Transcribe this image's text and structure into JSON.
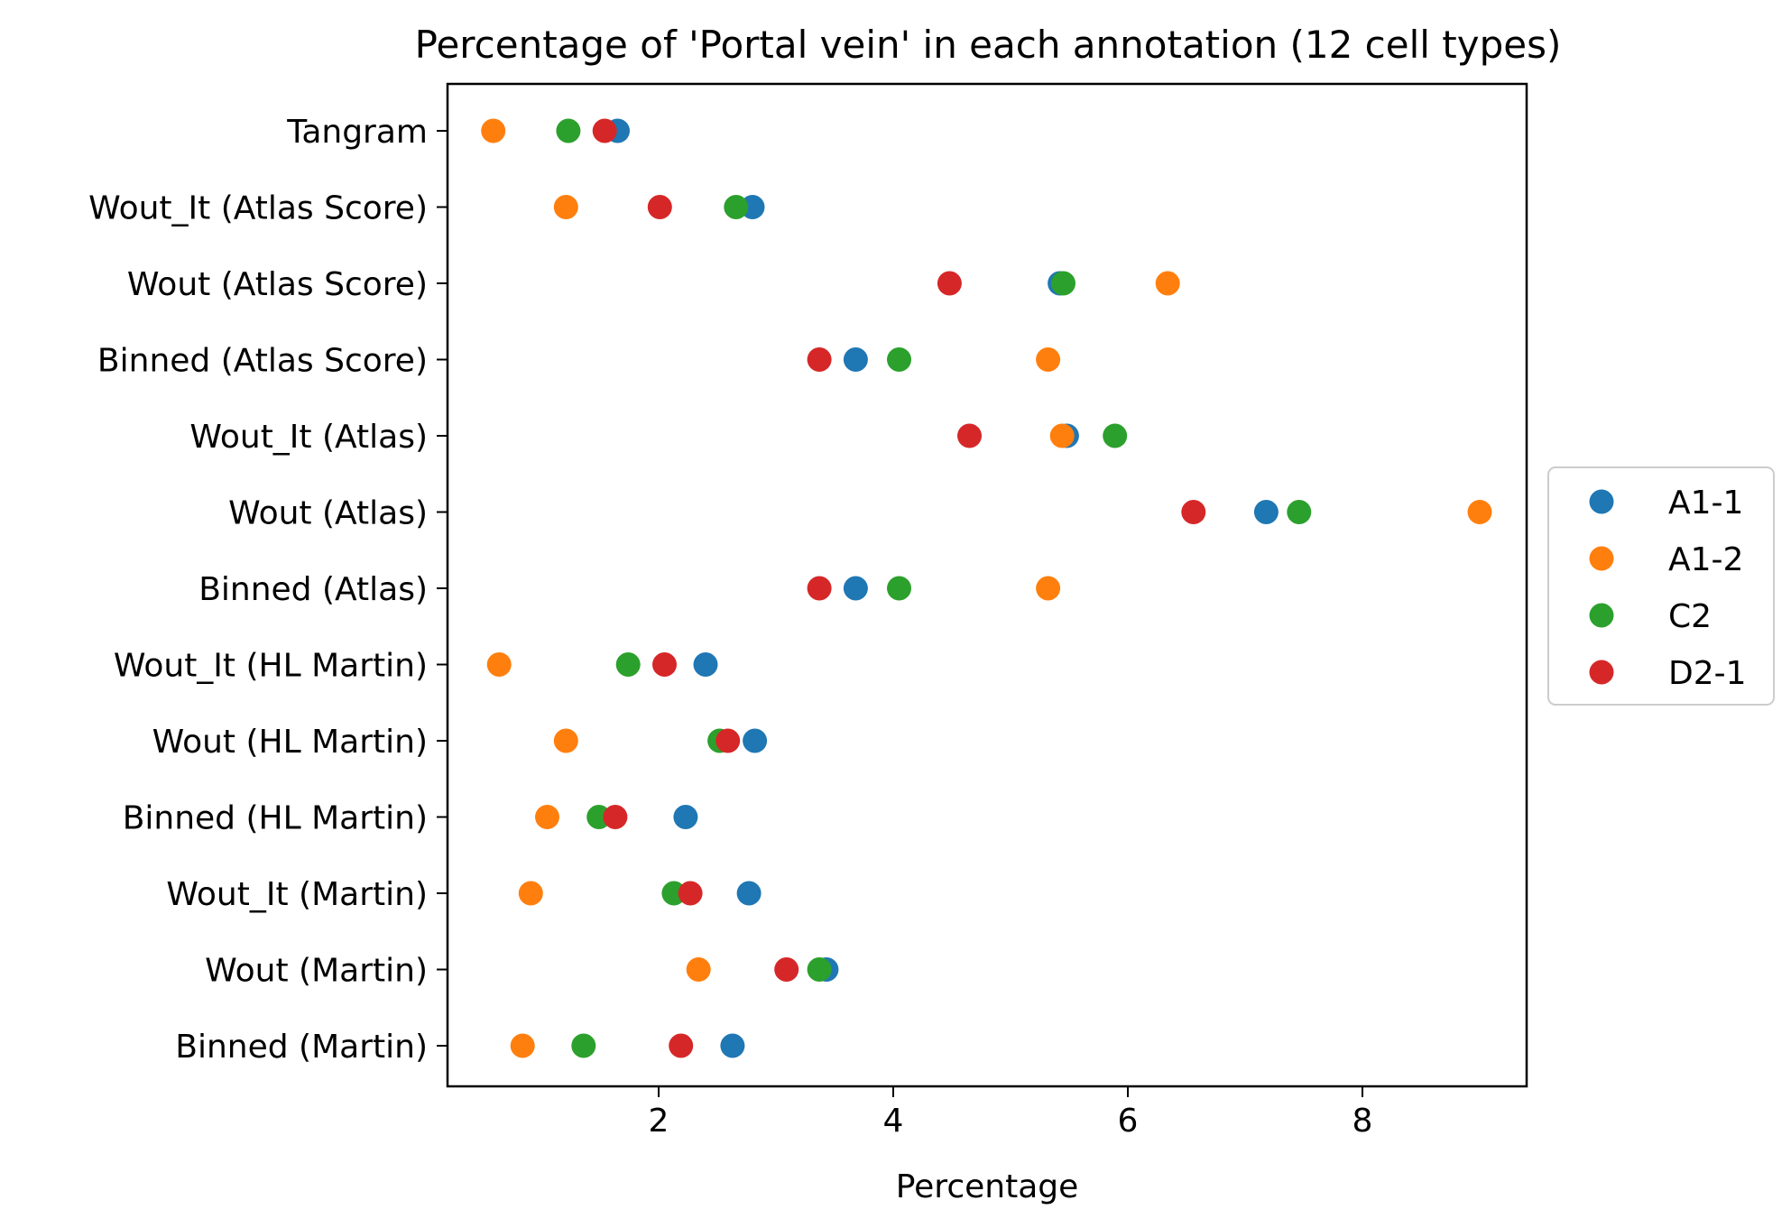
{
  "chart_data": {
    "type": "scatter",
    "title": "Percentage of 'Portal vein' in each annotation (12 cell types)",
    "xlabel": "Percentage",
    "ylabel": "",
    "xlim": [
      0.2,
      9.4
    ],
    "xticks": [
      2,
      4,
      6,
      8
    ],
    "categories": [
      "Tangram",
      "Wout_It (Atlas Score)",
      "Wout (Atlas Score)",
      "Binned (Atlas Score)",
      "Wout_It (Atlas)",
      "Wout (Atlas)",
      "Binned (Atlas)",
      "Wout_It (HL Martin)",
      "Wout (HL Martin)",
      "Binned (HL Martin)",
      "Wout_It (Martin)",
      "Wout (Martin)",
      "Binned (Martin)"
    ],
    "series": [
      {
        "name": "A1-1",
        "color": "#1f77b4",
        "values": [
          1.65,
          2.8,
          5.42,
          3.68,
          5.48,
          7.18,
          3.68,
          2.4,
          2.82,
          2.23,
          2.77,
          3.43,
          2.63
        ]
      },
      {
        "name": "A1-2",
        "color": "#ff7f0e",
        "values": [
          0.59,
          1.21,
          6.34,
          5.32,
          5.44,
          9.0,
          5.32,
          0.64,
          1.21,
          1.05,
          0.91,
          2.34,
          0.84
        ]
      },
      {
        "name": "C2",
        "color": "#2ca02c",
        "values": [
          1.23,
          2.66,
          5.45,
          4.05,
          5.89,
          7.46,
          4.05,
          1.74,
          2.52,
          1.49,
          2.13,
          3.37,
          1.36
        ]
      },
      {
        "name": "D2-1",
        "color": "#d62728",
        "values": [
          1.54,
          2.01,
          4.48,
          3.37,
          4.65,
          6.56,
          3.37,
          2.05,
          2.59,
          1.63,
          2.27,
          3.09,
          2.19
        ]
      }
    ],
    "grid": false,
    "legend_position": "right"
  }
}
